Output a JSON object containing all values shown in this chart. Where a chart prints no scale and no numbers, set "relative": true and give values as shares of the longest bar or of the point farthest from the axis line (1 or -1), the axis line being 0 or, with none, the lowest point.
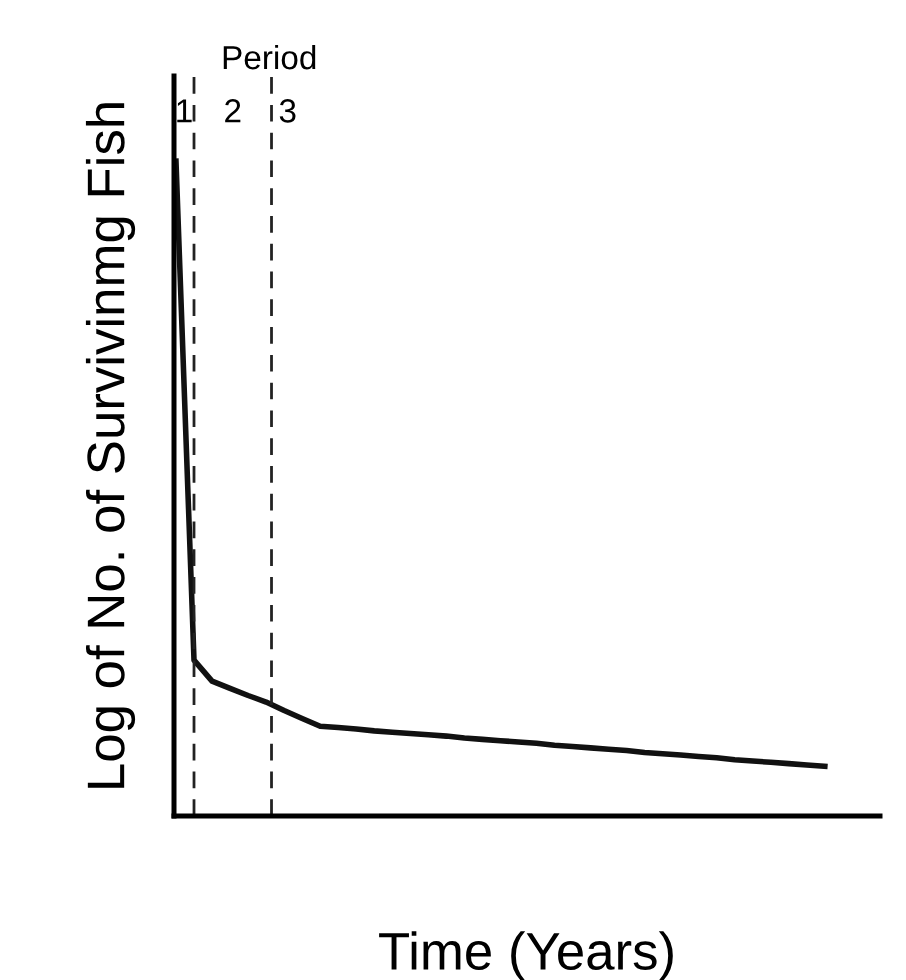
{
  "chart_data": {
    "type": "line",
    "relative": true,
    "xlabel": "Time (Years)",
    "ylabel": "Log of No. of Survivinmg Fish",
    "categories": [
      null,
      null,
      null,
      null,
      null,
      null,
      null,
      null,
      null,
      null,
      null,
      null,
      null,
      null,
      null,
      null,
      null,
      null,
      null,
      null,
      null,
      null,
      null,
      null,
      null,
      null,
      null,
      null,
      null,
      null,
      null,
      null,
      null,
      null,
      null,
      null,
      null
    ],
    "series": [
      {
        "color": "#111111",
        "values": [
          1,
          0.238,
          0.206,
          0.195,
          0.184,
          0.174,
          0.161,
          0.149,
          0.137,
          0.135,
          0.133,
          0.13,
          0.128,
          0.126,
          0.124,
          0.122,
          0.119,
          0.117,
          0.115,
          0.113,
          0.111,
          0.108,
          0.106,
          0.104,
          0.102,
          0.1,
          0.097,
          0.095,
          0.093,
          0.091,
          0.089,
          0.086,
          0.084,
          0.082,
          0.08,
          0.078,
          0.076
        ]
      }
    ],
    "annotations": [
      "Period",
      "1",
      "2",
      "3"
    ]
  }
}
